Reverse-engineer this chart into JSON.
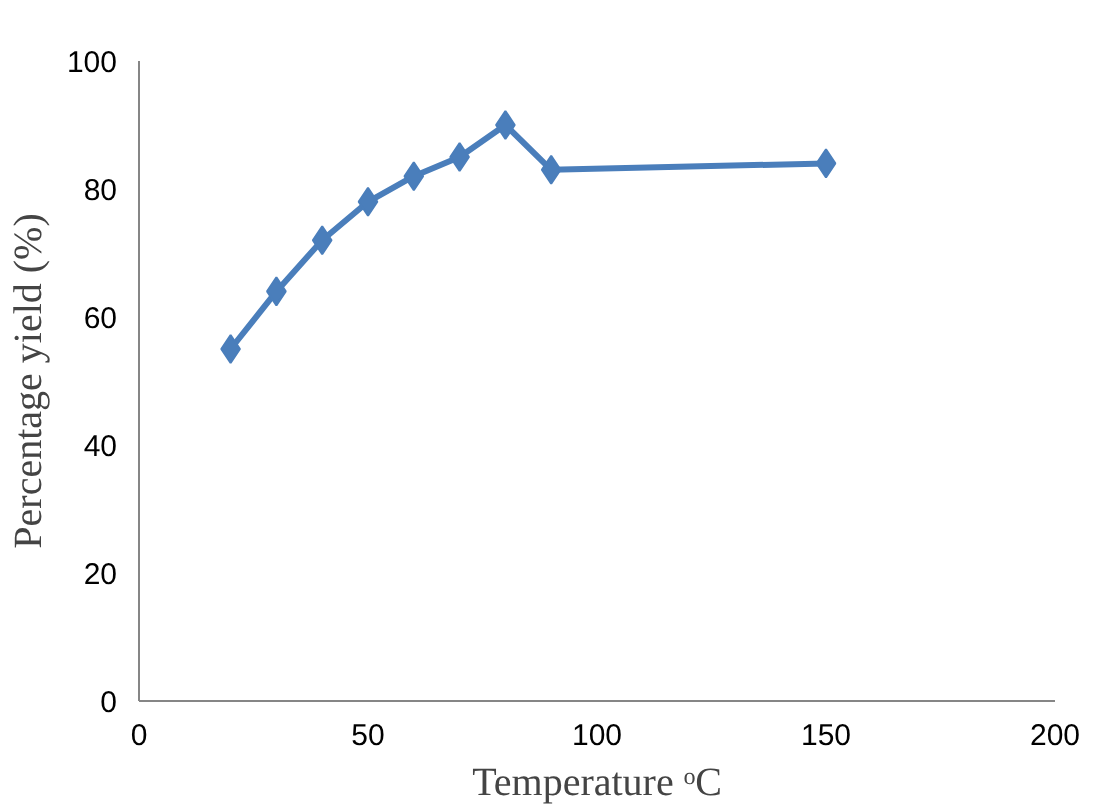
{
  "chart_data": {
    "type": "line",
    "xlabel": "Temperature ᵒC",
    "ylabel": "Percentage yield (%)",
    "x": [
      20,
      30,
      40,
      50,
      60,
      70,
      80,
      90,
      150
    ],
    "series": [
      {
        "color": "#4a7ebb",
        "values": [
          55,
          64,
          72,
          78,
          82,
          85,
          90,
          83,
          84
        ]
      }
    ],
    "xlim": [
      0,
      200
    ],
    "xticks": [
      0,
      50,
      100,
      150,
      200
    ],
    "ylim": [
      0,
      100
    ],
    "yticks": [
      0,
      20,
      40,
      60,
      80,
      100
    ],
    "grid": false,
    "marker": "diamond",
    "line_style": "solid"
  }
}
